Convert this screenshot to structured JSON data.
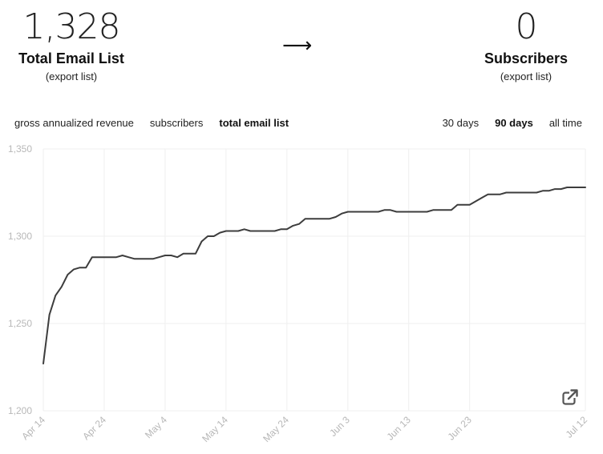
{
  "stats": {
    "left": {
      "value": "1,328",
      "title": "Total Email List",
      "link": "(export list)"
    },
    "arrow": "⟶",
    "right": {
      "value": "0",
      "title": "Subscribers",
      "link": "(export list)"
    }
  },
  "metric_tabs": [
    {
      "label": "gross annualized revenue",
      "active": false
    },
    {
      "label": "subscribers",
      "active": false
    },
    {
      "label": "total email list",
      "active": true
    }
  ],
  "range_tabs": [
    {
      "label": "30 days",
      "active": false
    },
    {
      "label": "90 days",
      "active": true
    },
    {
      "label": "all time",
      "active": false
    }
  ],
  "colors": {
    "line": "#3d3d3d",
    "grid": "#efefef",
    "axis_label": "#b8b8b8"
  },
  "icons": {
    "external_link": "external-link-icon"
  },
  "chart_data": {
    "type": "line",
    "ylim": [
      1200,
      1350
    ],
    "yticks": [
      "1,200",
      "1,250",
      "1,300",
      "1,350"
    ],
    "ytick_values": [
      1200,
      1250,
      1300,
      1350
    ],
    "xticks": [
      "Apr 14",
      "Apr 24",
      "May 4",
      "May 14",
      "May 24",
      "Jun 3",
      "Jun 13",
      "Jun 23",
      "Jul 12"
    ],
    "xtick_dates": [
      "2023-04-14",
      "2023-04-24",
      "2023-05-04",
      "2023-05-14",
      "2023-05-24",
      "2023-06-03",
      "2023-06-13",
      "2023-06-23",
      "2023-07-12"
    ],
    "grid": true,
    "series": [
      {
        "x": [
          "2023-04-14",
          "2023-04-15",
          "2023-04-16",
          "2023-04-17",
          "2023-04-18",
          "2023-04-19",
          "2023-04-20",
          "2023-04-21",
          "2023-04-22",
          "2023-04-23",
          "2023-04-24",
          "2023-04-25",
          "2023-04-26",
          "2023-04-27",
          "2023-04-28",
          "2023-04-29",
          "2023-04-30",
          "2023-05-01",
          "2023-05-02",
          "2023-05-03",
          "2023-05-04",
          "2023-05-05",
          "2023-05-06",
          "2023-05-07",
          "2023-05-08",
          "2023-05-09",
          "2023-05-10",
          "2023-05-11",
          "2023-05-12",
          "2023-05-13",
          "2023-05-14",
          "2023-05-15",
          "2023-05-16",
          "2023-05-17",
          "2023-05-18",
          "2023-05-19",
          "2023-05-20",
          "2023-05-21",
          "2023-05-22",
          "2023-05-23",
          "2023-05-24",
          "2023-05-25",
          "2023-05-26",
          "2023-05-27",
          "2023-05-28",
          "2023-05-29",
          "2023-05-30",
          "2023-05-31",
          "2023-06-01",
          "2023-06-02",
          "2023-06-03",
          "2023-06-04",
          "2023-06-05",
          "2023-06-06",
          "2023-06-07",
          "2023-06-08",
          "2023-06-09",
          "2023-06-10",
          "2023-06-11",
          "2023-06-12",
          "2023-06-13",
          "2023-06-14",
          "2023-06-15",
          "2023-06-16",
          "2023-06-17",
          "2023-06-18",
          "2023-06-19",
          "2023-06-20",
          "2023-06-21",
          "2023-06-22",
          "2023-06-23",
          "2023-06-24",
          "2023-06-25",
          "2023-06-26",
          "2023-06-27",
          "2023-06-28",
          "2023-06-29",
          "2023-06-30",
          "2023-07-01",
          "2023-07-02",
          "2023-07-03",
          "2023-07-04",
          "2023-07-05",
          "2023-07-06",
          "2023-07-07",
          "2023-07-08",
          "2023-07-09",
          "2023-07-10",
          "2023-07-11",
          "2023-07-12"
        ],
        "y": [
          1227,
          1255,
          1266,
          1271,
          1278,
          1281,
          1282,
          1282,
          1288,
          1288,
          1288,
          1288,
          1288,
          1289,
          1288,
          1287,
          1287,
          1287,
          1287,
          1288,
          1289,
          1289,
          1288,
          1290,
          1290,
          1290,
          1297,
          1300,
          1300,
          1302,
          1303,
          1303,
          1303,
          1304,
          1303,
          1303,
          1303,
          1303,
          1303,
          1304,
          1304,
          1306,
          1307,
          1310,
          1310,
          1310,
          1310,
          1310,
          1311,
          1313,
          1314,
          1314,
          1314,
          1314,
          1314,
          1314,
          1315,
          1315,
          1314,
          1314,
          1314,
          1314,
          1314,
          1314,
          1315,
          1315,
          1315,
          1315,
          1318,
          1318,
          1318,
          1320,
          1322,
          1324,
          1324,
          1324,
          1325,
          1325,
          1325,
          1325,
          1325,
          1325,
          1326,
          1326,
          1327,
          1327,
          1328,
          1328,
          1328,
          1328
        ]
      }
    ]
  }
}
